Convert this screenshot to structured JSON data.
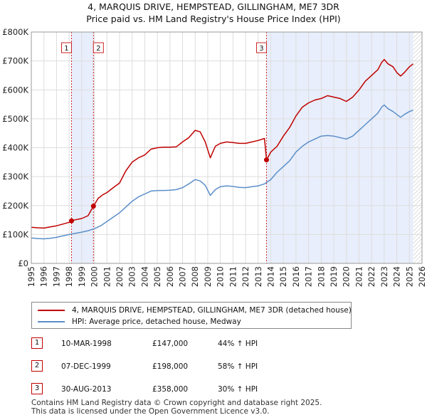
{
  "chart_data": {
    "type": "line",
    "title": "4, MARQUIS DRIVE, HEMPSTEAD, GILLINGHAM, ME7 3DR",
    "subtitle": "Price paid vs. HM Land Registry's House Price Index (HPI)",
    "xlabel": "",
    "ylabel": "",
    "xlim": [
      1995,
      2026
    ],
    "ylim": [
      0,
      800000
    ],
    "y_ticks": [
      {
        "value": 0,
        "label": "£0"
      },
      {
        "value": 100000,
        "label": "£100K"
      },
      {
        "value": 200000,
        "label": "£200K"
      },
      {
        "value": 300000,
        "label": "£300K"
      },
      {
        "value": 400000,
        "label": "£400K"
      },
      {
        "value": 500000,
        "label": "£500K"
      },
      {
        "value": 600000,
        "label": "£600K"
      },
      {
        "value": 700000,
        "label": "£700K"
      },
      {
        "value": 800000,
        "label": "£800K"
      }
    ],
    "x_ticks": [
      "1995",
      "1996",
      "1997",
      "1998",
      "1999",
      "2000",
      "2001",
      "2002",
      "2003",
      "2004",
      "2005",
      "2006",
      "2007",
      "2008",
      "2009",
      "2010",
      "2011",
      "2012",
      "2013",
      "2014",
      "2015",
      "2016",
      "2017",
      "2018",
      "2019",
      "2020",
      "2021",
      "2022",
      "2023",
      "2024",
      "2025",
      "2026"
    ],
    "grid": true,
    "legend_position": "below",
    "colors": {
      "property": "#c00000",
      "hpi": "#5b8fc9",
      "shade": "#e8eefb",
      "vline": "#cc2222",
      "grid": "#dddddd"
    },
    "shaded_ranges": [
      [
        1998.19,
        1999.93
      ],
      [
        2013.66,
        2025.3
      ]
    ],
    "hatched_range": [
      2025.3,
      2026
    ],
    "series": [
      {
        "name": "4, MARQUIS DRIVE, HEMPSTEAD, GILLINGHAM, ME7 3DR (detached house)",
        "key": "property",
        "x": [
          1995.0,
          1995.5,
          1996.0,
          1996.5,
          1997.0,
          1997.5,
          1998.0,
          1998.19,
          1998.5,
          1999.0,
          1999.5,
          1999.93,
          2000.3,
          2000.7,
          2001.0,
          2001.5,
          2002.0,
          2002.5,
          2003.0,
          2003.5,
          2004.0,
          2004.5,
          2005.0,
          2005.5,
          2006.0,
          2006.5,
          2007.0,
          2007.5,
          2008.0,
          2008.4,
          2008.8,
          2009.2,
          2009.6,
          2010.0,
          2010.5,
          2011.0,
          2011.5,
          2012.0,
          2012.5,
          2013.0,
          2013.5,
          2013.66,
          2014.0,
          2014.5,
          2015.0,
          2015.5,
          2016.0,
          2016.5,
          2017.0,
          2017.5,
          2018.0,
          2018.5,
          2019.0,
          2019.5,
          2020.0,
          2020.5,
          2021.0,
          2021.5,
          2022.0,
          2022.5,
          2022.8,
          2023.0,
          2023.3,
          2023.7,
          2024.0,
          2024.3,
          2024.6,
          2025.0,
          2025.3
        ],
        "values": [
          125000,
          123000,
          122000,
          126000,
          130000,
          136000,
          142000,
          147000,
          151000,
          155000,
          165000,
          198000,
          225000,
          238000,
          245000,
          262000,
          278000,
          320000,
          350000,
          365000,
          375000,
          395000,
          400000,
          402000,
          402000,
          403000,
          420000,
          435000,
          460000,
          455000,
          420000,
          365000,
          405000,
          415000,
          420000,
          418000,
          415000,
          415000,
          420000,
          425000,
          432000,
          358000,
          385000,
          405000,
          440000,
          470000,
          510000,
          540000,
          555000,
          565000,
          570000,
          580000,
          575000,
          570000,
          560000,
          575000,
          600000,
          630000,
          650000,
          670000,
          695000,
          705000,
          690000,
          680000,
          660000,
          648000,
          660000,
          680000,
          690000
        ]
      },
      {
        "name": "HPI: Average price, detached house, Medway",
        "key": "hpi",
        "x": [
          1995.0,
          1995.5,
          1996.0,
          1996.5,
          1997.0,
          1997.5,
          1998.0,
          1998.5,
          1999.0,
          1999.5,
          2000.0,
          2000.5,
          2001.0,
          2001.5,
          2002.0,
          2002.5,
          2003.0,
          2003.5,
          2004.0,
          2004.5,
          2005.0,
          2005.5,
          2006.0,
          2006.5,
          2007.0,
          2007.5,
          2008.0,
          2008.4,
          2008.8,
          2009.2,
          2009.6,
          2010.0,
          2010.5,
          2011.0,
          2011.5,
          2012.0,
          2012.5,
          2013.0,
          2013.5,
          2014.0,
          2014.5,
          2015.0,
          2015.5,
          2016.0,
          2016.5,
          2017.0,
          2017.5,
          2018.0,
          2018.5,
          2019.0,
          2019.5,
          2020.0,
          2020.5,
          2021.0,
          2021.5,
          2022.0,
          2022.5,
          2022.8,
          2023.0,
          2023.3,
          2023.7,
          2024.0,
          2024.3,
          2024.6,
          2025.0,
          2025.3
        ],
        "values": [
          88000,
          86000,
          85000,
          87000,
          90000,
          95000,
          100000,
          104000,
          108000,
          113000,
          120000,
          130000,
          145000,
          160000,
          175000,
          195000,
          215000,
          230000,
          240000,
          250000,
          252000,
          252000,
          253000,
          255000,
          262000,
          275000,
          290000,
          285000,
          270000,
          235000,
          255000,
          265000,
          268000,
          266000,
          263000,
          262000,
          265000,
          268000,
          275000,
          290000,
          315000,
          335000,
          355000,
          385000,
          405000,
          420000,
          430000,
          440000,
          442000,
          440000,
          435000,
          430000,
          440000,
          460000,
          480000,
          500000,
          520000,
          540000,
          548000,
          535000,
          525000,
          515000,
          505000,
          515000,
          525000,
          530000
        ]
      }
    ],
    "markers": [
      {
        "label": "1",
        "x": 1998.19,
        "value": 147000
      },
      {
        "label": "2",
        "x": 1999.93,
        "value": 198000
      },
      {
        "label": "3",
        "x": 2013.66,
        "value": 358000
      }
    ]
  },
  "legend": {
    "property_label": "4, MARQUIS DRIVE, HEMPSTEAD, GILLINGHAM, ME7 3DR (detached house)",
    "hpi_label": "HPI: Average price, detached house, Medway"
  },
  "transactions": [
    {
      "num": "1",
      "date": "10-MAR-1998",
      "price": "£147,000",
      "hpi": "44% ↑ HPI"
    },
    {
      "num": "2",
      "date": "07-DEC-1999",
      "price": "£198,000",
      "hpi": "58% ↑ HPI"
    },
    {
      "num": "3",
      "date": "30-AUG-2013",
      "price": "£358,000",
      "hpi": "30% ↑ HPI"
    }
  ],
  "footer": {
    "line1": "Contains HM Land Registry data © Crown copyright and database right 2025.",
    "line2": "This data is licensed under the Open Government Licence v3.0."
  }
}
